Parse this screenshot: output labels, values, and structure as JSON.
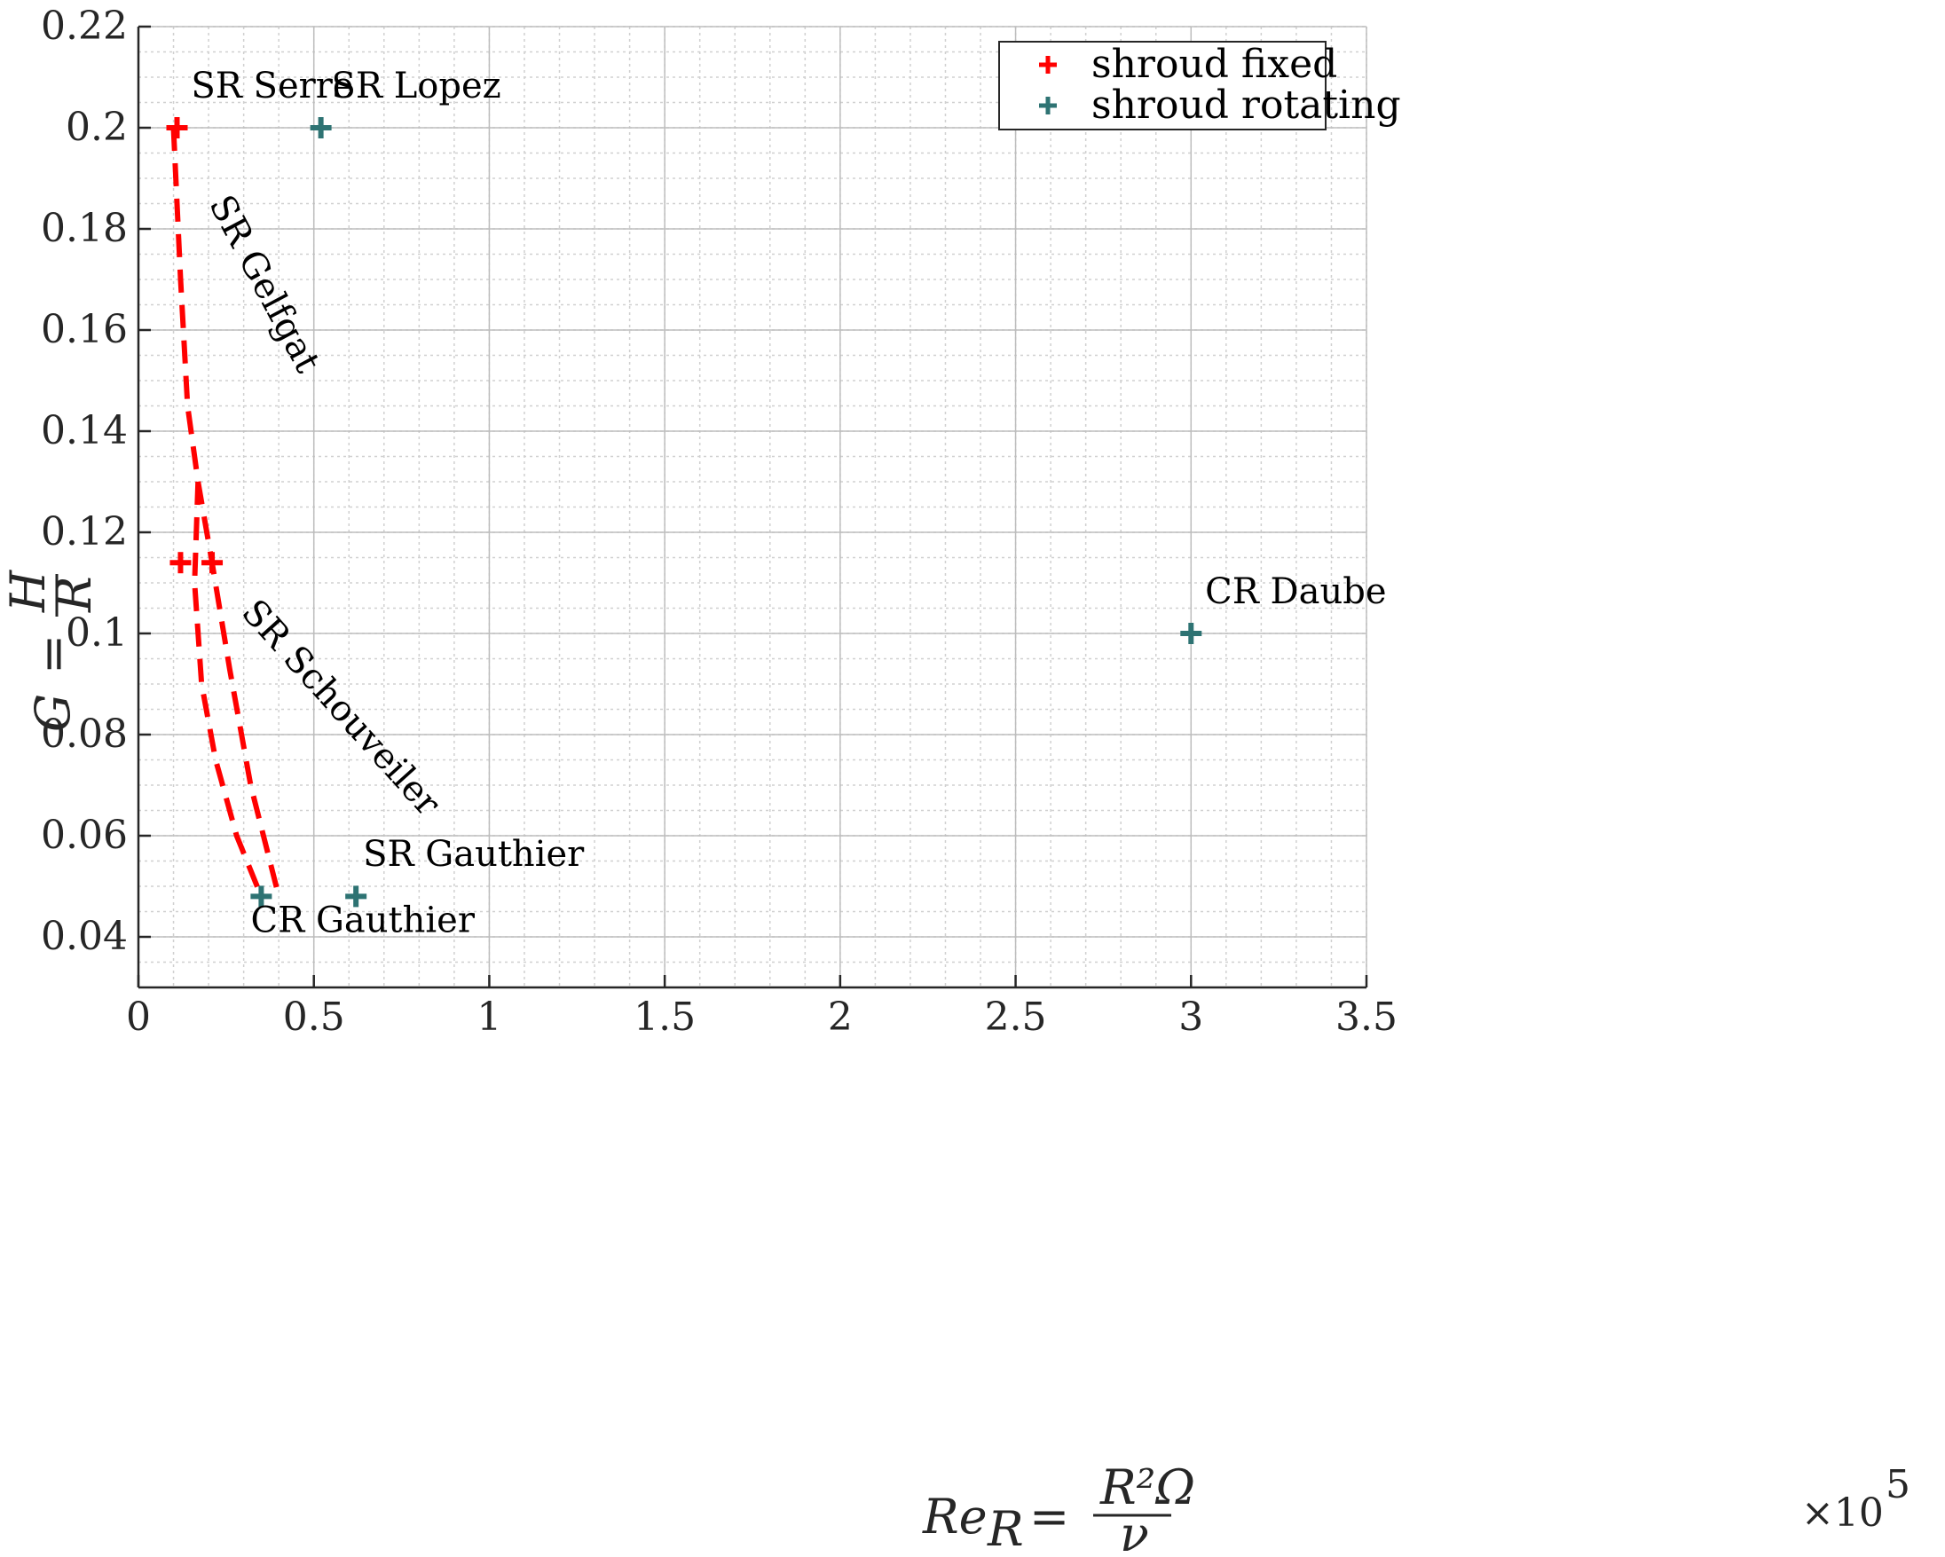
{
  "chart_data": {
    "type": "scatter",
    "title": "",
    "xlabel": "Re_R = R²Ω / ν",
    "ylabel": "G = H / R",
    "x_multiplier": "×10^5",
    "xlim": [
      0,
      350000
    ],
    "ylim": [
      0.03,
      0.22
    ],
    "x_ticks": [
      0,
      50000,
      100000,
      150000,
      200000,
      250000,
      300000,
      350000
    ],
    "x_tick_labels": [
      "0",
      "0.5",
      "1",
      "1.5",
      "2",
      "2.5",
      "3",
      "3.5"
    ],
    "y_ticks": [
      0.04,
      0.06,
      0.08,
      0.1,
      0.12,
      0.14,
      0.16,
      0.18,
      0.2,
      0.22
    ],
    "y_tick_labels": [
      "0.04",
      "0.06",
      "0.08",
      "0.1",
      "0.12",
      "0.14",
      "0.16",
      "0.18",
      "0.2",
      "0.22"
    ],
    "grid": "major and minor",
    "legend_position": "top-right",
    "series": [
      {
        "name": "shroud fixed",
        "color": "#ff0000",
        "marker": "plus",
        "points": [
          {
            "x": 11000,
            "y": 0.2
          },
          {
            "x": 12000,
            "y": 0.114
          },
          {
            "x": 21000,
            "y": 0.114
          }
        ]
      },
      {
        "name": "shroud rotating",
        "color": "#2e7373",
        "marker": "plus",
        "points": [
          {
            "x": 52000,
            "y": 0.2
          },
          {
            "x": 35000,
            "y": 0.048
          },
          {
            "x": 62000,
            "y": 0.048
          },
          {
            "x": 300000,
            "y": 0.1
          }
        ]
      }
    ],
    "curves": [
      {
        "label": "SR Gelfgat",
        "color": "#ff0000",
        "style": "dashed",
        "points": [
          {
            "x": 10000,
            "y": 0.2
          },
          {
            "x": 12000,
            "y": 0.17
          },
          {
            "x": 14000,
            "y": 0.145
          },
          {
            "x": 17000,
            "y": 0.13
          },
          {
            "x": 21000,
            "y": 0.114
          },
          {
            "x": 26000,
            "y": 0.093
          },
          {
            "x": 32000,
            "y": 0.07
          },
          {
            "x": 40000,
            "y": 0.048
          }
        ]
      },
      {
        "label": "SR Schouveiler",
        "color": "#ff0000",
        "style": "dashed",
        "points": [
          {
            "x": 17000,
            "y": 0.13
          },
          {
            "x": 16000,
            "y": 0.11
          },
          {
            "x": 18000,
            "y": 0.09
          },
          {
            "x": 22000,
            "y": 0.075
          },
          {
            "x": 28000,
            "y": 0.06
          },
          {
            "x": 35000,
            "y": 0.048
          }
        ]
      }
    ],
    "annotations": [
      {
        "text": "SR Serre",
        "x": 15000,
        "y": 0.206
      },
      {
        "text": "SR Lopez",
        "x": 55000,
        "y": 0.206
      },
      {
        "text": "SR Gelfgat",
        "x": 20000,
        "y": 0.18
      },
      {
        "text": "SR Schouveiler",
        "x": 33000,
        "y": 0.103
      },
      {
        "text": "CR Daube",
        "x": 304000,
        "y": 0.106
      },
      {
        "text": "SR Gauthier",
        "x": 64000,
        "y": 0.054
      },
      {
        "text": "CR Gauthier",
        "x": 32000,
        "y": 0.041
      }
    ]
  }
}
